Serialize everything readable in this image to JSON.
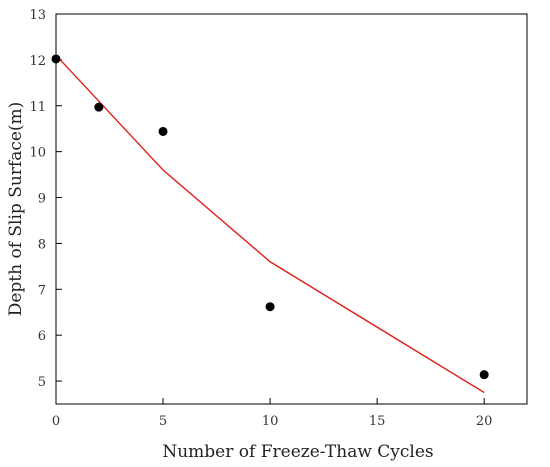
{
  "chart_data": {
    "type": "scatter",
    "title": "",
    "xlabel": "Number of Freeze-Thaw Cycles",
    "ylabel": "Depth of Slip Surface(m)",
    "xlim": [
      0,
      22
    ],
    "ylim": [
      4.5,
      13
    ],
    "xticks": [
      0,
      5,
      10,
      15,
      20
    ],
    "yticks": [
      5,
      6,
      7,
      8,
      9,
      10,
      11,
      12,
      13
    ],
    "grid": false,
    "legend": "none",
    "series": [
      {
        "type": "scatter",
        "color": "#000000",
        "x": [
          0,
          2,
          5,
          10,
          20
        ],
        "y": [
          12.02,
          10.97,
          10.44,
          6.62,
          5.14
        ]
      },
      {
        "type": "line",
        "color": "#e0201b",
        "x": [
          0,
          5,
          10,
          20
        ],
        "y": [
          12.1,
          9.6,
          7.6,
          4.75
        ]
      }
    ]
  }
}
